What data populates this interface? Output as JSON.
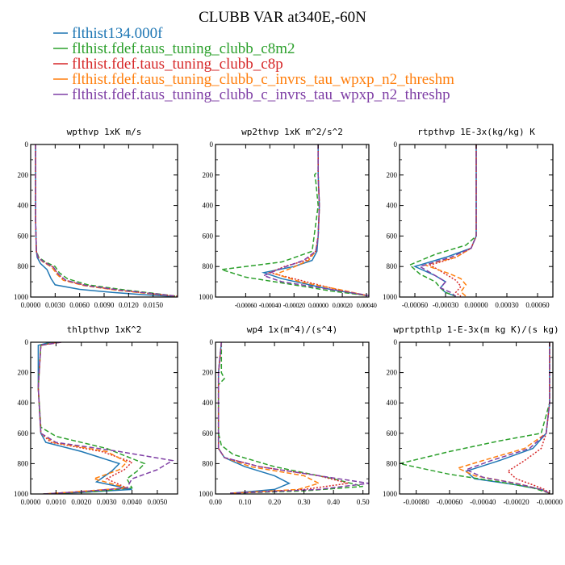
{
  "figure": {
    "title": "CLUBB VAR at340E,-60N"
  },
  "legend": [
    {
      "label": "flthist134.000f",
      "color": "#1f77b4",
      "dash": "solid"
    },
    {
      "label": "flthist.fdef.taus_tuning_clubb_c8m2",
      "color": "#2ca02c",
      "dash": "dash"
    },
    {
      "label": "flthist.fdef.taus_tuning_clubb_c8p",
      "color": "#d62728",
      "dash": "dot"
    },
    {
      "label": "flthist.fdef.taus_tuning_clubb_c_invrs_tau_wpxp_n2_threshm",
      "color": "#ff7f0e",
      "dash": "dash"
    },
    {
      "label": "flthist.fdef.taus_tuning_clubb_c_invrs_tau_wpxp_n2_threshp",
      "color": "#7f3fa5",
      "dash": "dash"
    }
  ],
  "chart_data": [
    {
      "type": "line",
      "title": "wpthvp  1xK m/s",
      "xlim": [
        0,
        0.018
      ],
      "ylim": [
        1000,
        0
      ],
      "x_ticks": [
        "0.0000",
        "0.0030",
        "0.0060",
        "0.0090",
        "0.0120",
        "0.0150"
      ],
      "x_tick_values": [
        0,
        0.003,
        0.006,
        0.009,
        0.012,
        0.015
      ],
      "y_ticks": [
        "0",
        "200",
        "400",
        "600",
        "800",
        "1000"
      ],
      "y_tick_values": [
        0,
        200,
        400,
        600,
        800,
        1000
      ],
      "series": [
        {
          "x": [
            0.0006,
            0.0006,
            0.0006,
            0.0007,
            0.0008,
            0.0012,
            0.002,
            0.0025,
            0.003,
            0.006,
            0.01,
            0.014,
            0.0175
          ],
          "y": [
            0,
            200,
            500,
            700,
            740,
            780,
            820,
            880,
            920,
            950,
            970,
            985,
            995
          ]
        },
        {
          "x": [
            0.0006,
            0.0006,
            0.0006,
            0.0007,
            0.001,
            0.0018,
            0.003,
            0.0035,
            0.0045,
            0.007,
            0.011,
            0.015,
            0.018
          ],
          "y": [
            0,
            200,
            500,
            700,
            740,
            770,
            800,
            840,
            880,
            920,
            950,
            975,
            995
          ]
        },
        {
          "x": [
            0.0006,
            0.0006,
            0.0006,
            0.0007,
            0.0009,
            0.0016,
            0.0028,
            0.0033,
            0.0042,
            0.0068,
            0.0108,
            0.0148,
            0.018
          ],
          "y": [
            0,
            200,
            500,
            700,
            740,
            770,
            805,
            850,
            890,
            925,
            955,
            978,
            995
          ]
        },
        {
          "x": [
            0.0006,
            0.0006,
            0.0006,
            0.0007,
            0.0009,
            0.0015,
            0.0026,
            0.0032,
            0.004,
            0.0065,
            0.0105,
            0.0145,
            0.018
          ],
          "y": [
            0,
            200,
            500,
            700,
            740,
            770,
            805,
            850,
            890,
            925,
            955,
            978,
            995
          ]
        },
        {
          "x": [
            0.0006,
            0.0006,
            0.0006,
            0.0007,
            0.0009,
            0.0016,
            0.0028,
            0.0034,
            0.0043,
            0.0068,
            0.011,
            0.015,
            0.018
          ],
          "y": [
            0,
            200,
            500,
            700,
            740,
            770,
            805,
            850,
            890,
            925,
            955,
            978,
            995
          ]
        }
      ]
    },
    {
      "type": "line",
      "title": "wp2thvp  1xK m^2/s^2",
      "xlim": [
        -0.00085,
        0.00042
      ],
      "ylim": [
        1000,
        0
      ],
      "x_ticks": [
        "-0.00060",
        "-0.00040",
        "-0.00020",
        "0.00000",
        "0.00020",
        "0.00040"
      ],
      "x_tick_values": [
        -0.0006,
        -0.0004,
        -0.0002,
        0.0,
        0.0002,
        0.0004
      ],
      "x_ticks_compact": true,
      "y_ticks": [
        "0",
        "200",
        "400",
        "600",
        "800",
        "1000"
      ],
      "y_tick_values": [
        0,
        200,
        400,
        600,
        800,
        1000
      ],
      "series": [
        {
          "x": [
            0.0,
            0.0,
            1e-05,
            0.0,
            -1e-05,
            -5e-05,
            -0.0002,
            -0.00045,
            -0.0003,
            0.0001,
            0.0004
          ],
          "y": [
            0,
            200,
            400,
            600,
            700,
            760,
            800,
            840,
            880,
            950,
            990
          ]
        },
        {
          "x": [
            0.0,
            0.0,
            -3e-05,
            -2e-05,
            0.0,
            -5e-05,
            -0.0003,
            -0.0008,
            -0.0006,
            -0.0002,
            0.0001,
            0.0004
          ],
          "y": [
            0,
            170,
            200,
            240,
            400,
            700,
            770,
            820,
            870,
            920,
            960,
            990
          ]
        },
        {
          "x": [
            0.0,
            0.0,
            1e-05,
            0.0,
            -2e-05,
            -0.0001,
            -0.00028,
            -0.0004,
            -0.0002,
            0.00015,
            0.0004
          ],
          "y": [
            0,
            200,
            400,
            600,
            700,
            760,
            800,
            840,
            880,
            950,
            990
          ]
        },
        {
          "x": [
            0.0,
            0.0,
            1e-05,
            0.0,
            -2e-05,
            -8e-05,
            -0.00022,
            -0.00035,
            -0.00015,
            0.0002,
            0.0004
          ],
          "y": [
            0,
            200,
            400,
            600,
            700,
            760,
            810,
            850,
            900,
            955,
            990
          ]
        },
        {
          "x": [
            0.0,
            0.0,
            1e-05,
            0.0,
            -2e-05,
            -0.00012,
            -0.0003,
            -0.00045,
            -0.0003,
            0.0001,
            0.00042
          ],
          "y": [
            0,
            200,
            400,
            600,
            700,
            760,
            810,
            860,
            900,
            950,
            990
          ]
        }
      ]
    },
    {
      "type": "line",
      "title": "rtpthvp   1E-3x(kg/kg) K",
      "xlim": [
        -0.00075,
        0.00075
      ],
      "ylim": [
        1000,
        0
      ],
      "x_ticks": [
        "-0.00060",
        "-0.00030",
        "0.00000",
        "0.00030",
        "0.00060"
      ],
      "x_tick_values": [
        -0.0006,
        -0.0003,
        0.0,
        0.0003,
        0.0006
      ],
      "y_ticks": [
        "0",
        "200",
        "400",
        "600",
        "800",
        "1000"
      ],
      "y_tick_values": [
        0,
        200,
        400,
        600,
        800,
        1000
      ],
      "series": [
        {
          "x": [
            0.0,
            0.0,
            0.0,
            -5e-05,
            -0.0003,
            -0.0006,
            -0.0004,
            -0.0003,
            -0.00035,
            -0.0003,
            -0.0002
          ],
          "y": [
            0,
            300,
            600,
            680,
            740,
            800,
            860,
            900,
            940,
            970,
            995
          ]
        },
        {
          "x": [
            0.0,
            0.0,
            0.0,
            -0.0001,
            -0.0004,
            -0.00065,
            -0.00055,
            -0.0004,
            -0.00035,
            -0.0003,
            -0.0002
          ],
          "y": [
            0,
            300,
            600,
            660,
            720,
            790,
            850,
            900,
            940,
            970,
            995
          ]
        },
        {
          "x": [
            0.0,
            0.0,
            0.0,
            -5e-05,
            -0.0002,
            -0.00045,
            -0.0003,
            -0.0002,
            -0.00015,
            -0.0002,
            -0.00015
          ],
          "y": [
            0,
            300,
            600,
            680,
            740,
            790,
            850,
            890,
            930,
            970,
            995
          ]
        },
        {
          "x": [
            0.0,
            0.0,
            0.0,
            -5e-05,
            -0.0002,
            -0.0005,
            -0.00025,
            -0.00015,
            -0.0001,
            -0.00015,
            -0.0001
          ],
          "y": [
            0,
            300,
            600,
            680,
            740,
            790,
            850,
            880,
            920,
            965,
            995
          ]
        },
        {
          "x": [
            0.0,
            0.0,
            0.0,
            -5e-05,
            -0.00025,
            -0.00055,
            -0.0004,
            -0.0003,
            -0.00035,
            -0.00025,
            -0.0002
          ],
          "y": [
            0,
            300,
            600,
            680,
            740,
            800,
            860,
            900,
            940,
            970,
            995
          ]
        }
      ]
    },
    {
      "type": "line",
      "title": "thlpthvp   1xK^2",
      "xlim": [
        0,
        0.0058
      ],
      "ylim": [
        1000,
        0
      ],
      "x_ticks": [
        "0.0000",
        "0.0010",
        "0.0020",
        "0.0030",
        "0.0040",
        "0.0050"
      ],
      "x_tick_values": [
        0,
        0.001,
        0.002,
        0.003,
        0.004,
        0.005
      ],
      "y_ticks": [
        "0",
        "200",
        "400",
        "600",
        "800",
        "1000"
      ],
      "y_tick_values": [
        0,
        200,
        400,
        600,
        800,
        1000
      ],
      "series": [
        {
          "x": [
            0.0008,
            0.0003,
            0.0003,
            0.0004,
            0.0006,
            0.002,
            0.0035,
            0.0032,
            0.0026,
            0.004,
            0.002,
            0.0005
          ],
          "y": [
            0,
            20,
            300,
            600,
            660,
            720,
            800,
            850,
            920,
            970,
            990,
            1000
          ]
        },
        {
          "x": [
            0.001,
            0.0004,
            0.0003,
            0.0004,
            0.001,
            0.003,
            0.0045,
            0.0042,
            0.0038,
            0.004,
            0.0025,
            0.0005
          ],
          "y": [
            0,
            20,
            300,
            560,
            620,
            700,
            800,
            850,
            900,
            960,
            985,
            1000
          ]
        },
        {
          "x": [
            0.0011,
            0.0004,
            0.0003,
            0.0004,
            0.0008,
            0.0028,
            0.004,
            0.0037,
            0.003,
            0.0038,
            0.002,
            0.0005
          ],
          "y": [
            0,
            20,
            300,
            600,
            660,
            720,
            790,
            840,
            900,
            960,
            985,
            1000
          ]
        },
        {
          "x": [
            0.0012,
            0.0004,
            0.0003,
            0.0004,
            0.0009,
            0.003,
            0.0038,
            0.0035,
            0.0025,
            0.0038,
            0.0018,
            0.0005
          ],
          "y": [
            0,
            20,
            300,
            600,
            660,
            720,
            790,
            840,
            900,
            960,
            985,
            1000
          ]
        },
        {
          "x": [
            0.0012,
            0.0004,
            0.0003,
            0.0004,
            0.001,
            0.0035,
            0.0056,
            0.005,
            0.004,
            0.0038,
            0.002,
            0.0005
          ],
          "y": [
            0,
            20,
            300,
            600,
            660,
            720,
            780,
            840,
            900,
            960,
            985,
            1000
          ]
        }
      ]
    },
    {
      "type": "line",
      "title": "wp4   1x(m^4)/(s^4)",
      "xlim": [
        0,
        0.52
      ],
      "ylim": [
        1000,
        0
      ],
      "x_ticks": [
        "0.00",
        "0.10",
        "0.20",
        "0.30",
        "0.40",
        "0.50"
      ],
      "x_tick_values": [
        0,
        0.1,
        0.2,
        0.3,
        0.4,
        0.5
      ],
      "y_ticks": [
        "0",
        "200",
        "400",
        "600",
        "800",
        "1000"
      ],
      "y_tick_values": [
        0,
        200,
        400,
        600,
        800,
        1000
      ],
      "series": [
        {
          "x": [
            0.02,
            0.01,
            0.01,
            0.01,
            0.03,
            0.1,
            0.2,
            0.25,
            0.2,
            0.05
          ],
          "y": [
            0,
            200,
            500,
            700,
            760,
            820,
            880,
            930,
            970,
            995
          ]
        },
        {
          "x": [
            0.02,
            0.02,
            0.03,
            0.01,
            0.01,
            0.02,
            0.06,
            0.2,
            0.4,
            0.5,
            0.3,
            0.05
          ],
          "y": [
            0,
            200,
            240,
            280,
            600,
            680,
            740,
            820,
            900,
            950,
            980,
            995
          ]
        },
        {
          "x": [
            0.02,
            0.01,
            0.01,
            0.01,
            0.03,
            0.15,
            0.35,
            0.45,
            0.3,
            0.05
          ],
          "y": [
            0,
            200,
            500,
            700,
            760,
            820,
            880,
            930,
            970,
            995
          ]
        },
        {
          "x": [
            0.02,
            0.01,
            0.01,
            0.01,
            0.03,
            0.12,
            0.3,
            0.35,
            0.28,
            0.05
          ],
          "y": [
            0,
            200,
            500,
            700,
            760,
            820,
            880,
            930,
            970,
            995
          ]
        },
        {
          "x": [
            0.02,
            0.01,
            0.01,
            0.01,
            0.03,
            0.15,
            0.35,
            0.52,
            0.35,
            0.05
          ],
          "y": [
            0,
            200,
            500,
            700,
            760,
            820,
            880,
            930,
            970,
            995
          ]
        }
      ]
    },
    {
      "type": "line",
      "title": "wprtpthlp   1-E-3x(m kg K)/(s kg)",
      "xlim": [
        -0.0009,
        2e-05
      ],
      "ylim": [
        1000,
        0
      ],
      "x_ticks": [
        "-0.00080",
        "-0.00060",
        "-0.00040",
        "-0.00020",
        "-0.00000"
      ],
      "x_tick_values": [
        -0.0008,
        -0.0006,
        -0.0004,
        -0.0002,
        0.0
      ],
      "y_ticks": [
        "0",
        "200",
        "400",
        "600",
        "800",
        "1000"
      ],
      "y_tick_values": [
        0,
        200,
        400,
        600,
        800,
        1000
      ],
      "series": [
        {
          "x": [
            0.0,
            0.0,
            -2e-05,
            -0.0001,
            -0.0003,
            -0.0005,
            -0.00045,
            -0.0002,
            -5e-05,
            0.0
          ],
          "y": [
            0,
            400,
            600,
            700,
            780,
            850,
            900,
            940,
            970,
            995
          ]
        },
        {
          "x": [
            0.0,
            0.0,
            -5e-05,
            -0.0003,
            -0.0006,
            -0.0009,
            -0.0006,
            -0.0003,
            -0.0001,
            0.0
          ],
          "y": [
            0,
            400,
            600,
            650,
            720,
            800,
            870,
            920,
            960,
            995
          ]
        },
        {
          "x": [
            0.0,
            0.0,
            -2e-05,
            -5e-05,
            -0.00015,
            -0.00025,
            -0.0002,
            -0.0001,
            -3e-05,
            0.0
          ],
          "y": [
            0,
            400,
            600,
            700,
            780,
            850,
            900,
            940,
            970,
            995
          ]
        },
        {
          "x": [
            0.0,
            0.0,
            -2e-05,
            -0.00015,
            -0.0004,
            -0.00055,
            -0.00045,
            -0.0002,
            -5e-05,
            0.0
          ],
          "y": [
            0,
            400,
            600,
            700,
            780,
            830,
            880,
            930,
            970,
            995
          ]
        },
        {
          "x": [
            0.0,
            0.0,
            -2e-05,
            -0.00012,
            -0.00035,
            -0.0005,
            -0.0004,
            -0.00018,
            -5e-05,
            0.0
          ],
          "y": [
            0,
            400,
            600,
            700,
            780,
            840,
            890,
            935,
            970,
            995
          ]
        }
      ]
    }
  ]
}
